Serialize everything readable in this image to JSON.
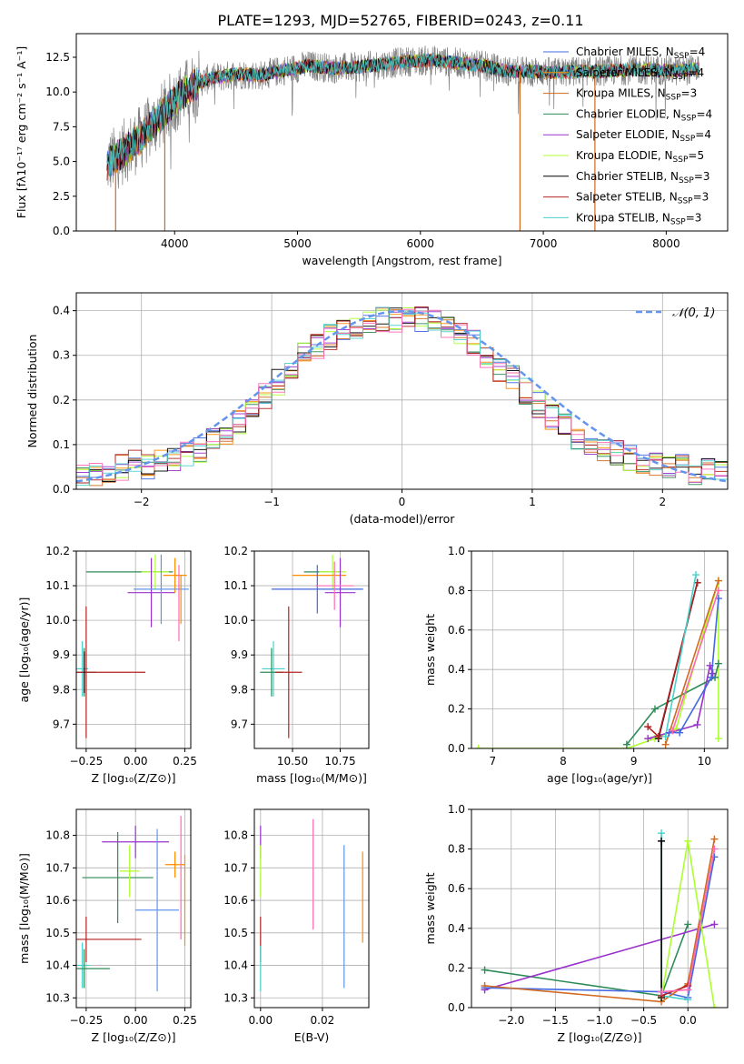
{
  "figure": {
    "title": "PLATE=1293, MJD=52765, FIBERID=0243, z=0.11"
  },
  "chart_data": [
    {
      "id": "spectrum",
      "type": "line",
      "title": "PLATE=1293, MJD=52765, FIBERID=0243, z=0.11",
      "xlabel": "wavelength [Angstrom, rest frame]",
      "ylabel": "Flux [fλ10⁻¹⁷ erg cm⁻² s⁻¹ A⁻¹]",
      "xlim": [
        3200,
        8500
      ],
      "ylim": [
        0,
        14.2
      ],
      "xticks": [
        4000,
        5000,
        6000,
        7000,
        8000
      ],
      "xtick_labels": [
        "4000",
        "5000",
        "6000",
        "7000",
        "8000"
      ],
      "yticks": [
        0,
        2.5,
        5,
        7.5,
        10,
        12.5
      ],
      "ytick_labels": [
        "0.0",
        "2.5",
        "5.0",
        "7.5",
        "10.0",
        "12.5"
      ],
      "grid": false,
      "legend_position": "right",
      "continuum": {
        "x": [
          3450,
          3600,
          3700,
          3800,
          3900,
          4000,
          4100,
          4200,
          4300,
          4400,
          4500,
          4700,
          4900,
          5100,
          5300,
          5500,
          5700,
          5900,
          6100,
          6300,
          6500,
          6700,
          6900,
          7100,
          7300,
          7500,
          7700,
          7900,
          8100,
          8270
        ],
        "y": [
          4.8,
          5.8,
          6.5,
          7.4,
          8.4,
          9.4,
          10.1,
          10.7,
          11.0,
          11.1,
          11.3,
          11.2,
          11.6,
          11.9,
          11.7,
          11.8,
          12.0,
          12.2,
          12.3,
          12.1,
          11.9,
          11.5,
          11.5,
          11.4,
          11.5,
          11.5,
          11.6,
          11.6,
          11.5,
          11.7
        ]
      },
      "series": [
        {
          "name": "Chabrier MILES, N$_{SSP}$=4",
          "color": "#4169e1",
          "label_main": "Chabrier MILES, N",
          "label_sub": "SSP",
          "label_tail": "=4"
        },
        {
          "name": "Salpeter MILES, N$_{SSP}$=4",
          "color": "#ff8c00",
          "label_main": "Salpeter MILES, N",
          "label_sub": "SSP",
          "label_tail": "=4"
        },
        {
          "name": "Kroupa MILES, N$_{SSP}$=3",
          "color": "#d2691e",
          "label_main": "Kroupa MILES, N",
          "label_sub": "SSP",
          "label_tail": "=3"
        },
        {
          "name": "Chabrier ELODIE, N$_{SSP}$=4",
          "color": "#2e8b57",
          "label_main": "Chabrier ELODIE, N",
          "label_sub": "SSP",
          "label_tail": "=4"
        },
        {
          "name": "Salpeter ELODIE, N$_{SSP}$=4",
          "color": "#9932cc",
          "label_main": "Salpeter ELODIE, N",
          "label_sub": "SSP",
          "label_tail": "=4"
        },
        {
          "name": "Kroupa ELODIE, N$_{SSP}$=5",
          "color": "#adff2f",
          "label_main": "Kroupa ELODIE, N",
          "label_sub": "SSP",
          "label_tail": "=5"
        },
        {
          "name": "Chabrier STELIB, N$_{SSP}$=3",
          "color": "#000000",
          "label_main": "Chabrier STELIB, N",
          "label_sub": "SSP",
          "label_tail": "=3"
        },
        {
          "name": "Salpeter STELIB, N$_{SSP}$=3",
          "color": "#b22222",
          "label_main": "Salpeter STELIB, N",
          "label_sub": "SSP",
          "label_tail": "=3"
        },
        {
          "name": "Kroupa STELIB, N$_{SSP}$=3",
          "color": "#48d1cc",
          "label_main": "Kroupa STELIB, N",
          "label_sub": "SSP",
          "label_tail": "=3"
        }
      ],
      "spikes_to_zero": [
        3520,
        3920,
        6810,
        7420
      ]
    },
    {
      "id": "residuals",
      "type": "histogram",
      "xlabel": "(data-model)/error",
      "ylabel": "Normed distribution",
      "xlim": [
        -2.5,
        2.5
      ],
      "ylim": [
        0,
        0.44
      ],
      "xticks": [
        -2,
        -1,
        0,
        1,
        2
      ],
      "xtick_labels": [
        "−2",
        "−1",
        "0",
        "1",
        "2"
      ],
      "yticks": [
        0,
        0.1,
        0.2,
        0.3,
        0.4
      ],
      "ytick_labels": [
        "0.0",
        "0.1",
        "0.2",
        "0.3",
        "0.4"
      ],
      "grid": true,
      "bin_width": 0.1,
      "bin_start": -2.5,
      "reference_curve": {
        "name": "N(0,1)",
        "legend_label": "𝒩(0, 1)",
        "color": "#6495ed",
        "style": "dashed",
        "mu": 0,
        "sigma": 1
      },
      "histogram_envelope": [
        0.03,
        0.03,
        0.04,
        0.05,
        0.06,
        0.05,
        0.06,
        0.07,
        0.08,
        0.09,
        0.11,
        0.13,
        0.15,
        0.18,
        0.21,
        0.24,
        0.27,
        0.3,
        0.32,
        0.34,
        0.35,
        0.36,
        0.37,
        0.38,
        0.38,
        0.39,
        0.38,
        0.38,
        0.37,
        0.35,
        0.33,
        0.3,
        0.27,
        0.25,
        0.22,
        0.19,
        0.16,
        0.14,
        0.12,
        0.1,
        0.09,
        0.08,
        0.07,
        0.06,
        0.06,
        0.05,
        0.05,
        0.04,
        0.04,
        0.04
      ]
    },
    {
      "id": "age-vs-z",
      "type": "errorbar",
      "xlabel": "Z [log₁₀(Z/Z⊙)]",
      "ylabel": "age  [log₁₀(age/yr)]",
      "xlim": [
        -0.3,
        0.28
      ],
      "ylim": [
        9.63,
        10.2
      ],
      "xticks": [
        -0.25,
        0.0,
        0.25
      ],
      "xtick_labels": [
        "−0.25",
        "0.00",
        "0.25"
      ],
      "yticks": [
        9.7,
        9.8,
        9.9,
        10.0,
        10.1,
        10.2
      ],
      "ytick_labels": [
        "9.7",
        "9.8",
        "9.9",
        "10.0",
        "10.1",
        "10.2"
      ],
      "grid": true,
      "points": [
        {
          "x": -0.27,
          "y": 9.86,
          "xerr": 0.03,
          "yerr": 0.08,
          "color": "#48d1cc"
        },
        {
          "x": -0.26,
          "y": 9.85,
          "xerr": 0.06,
          "yerr": 0.07,
          "color": "#2e8b57"
        },
        {
          "x": -0.25,
          "y": 9.85,
          "xerr": 0.3,
          "yerr": 0.19,
          "color": "#b22222"
        },
        {
          "x": -0.26,
          "y": 9.85,
          "xerr": 0.0,
          "yerr": 0.06,
          "color": "#000000"
        },
        {
          "x": -0.03,
          "y": 10.14,
          "xerr": 0.22,
          "yerr": 0.0,
          "color": "#2e8b57"
        },
        {
          "x": 0.1,
          "y": 10.14,
          "xerr": 0.07,
          "yerr": 0.05,
          "color": "#adff2f"
        },
        {
          "x": 0.08,
          "y": 10.08,
          "xerr": 0.12,
          "yerr": 0.1,
          "color": "#9932cc"
        },
        {
          "x": 0.2,
          "y": 10.13,
          "xerr": 0.06,
          "yerr": 0.05,
          "color": "#ff8c00"
        },
        {
          "x": 0.13,
          "y": 10.09,
          "xerr": 0.14,
          "yerr": 0.1,
          "color": "#6495ed"
        },
        {
          "x": 0.22,
          "y": 10.05,
          "xerr": 0.0,
          "yerr": 0.11,
          "color": "#ff69b4"
        },
        {
          "x": 0.23,
          "y": 10.06,
          "xerr": 0.0,
          "yerr": 0.07,
          "color": "#ff8c00"
        }
      ]
    },
    {
      "id": "age-vs-mass",
      "type": "errorbar",
      "xlabel": "mass [log₁₀(M/M⊙)]",
      "ylabel": "",
      "xlim": [
        10.3,
        10.9
      ],
      "ylim": [
        9.63,
        10.2
      ],
      "xticks": [
        10.5,
        10.75
      ],
      "xtick_labels": [
        "10.50",
        "10.75"
      ],
      "yticks": [
        9.7,
        9.8,
        9.9,
        10.0,
        10.1,
        10.2
      ],
      "ytick_labels": [
        "9.7",
        "9.8",
        "9.9",
        "10.0",
        "10.1",
        "10.2"
      ],
      "grid": true,
      "points": [
        {
          "x": 10.4,
          "y": 9.86,
          "xerr": 0.06,
          "yerr": 0.08,
          "color": "#48d1cc"
        },
        {
          "x": 10.39,
          "y": 9.85,
          "xerr": 0.06,
          "yerr": 0.07,
          "color": "#2e8b57"
        },
        {
          "x": 10.48,
          "y": 9.85,
          "xerr": 0.07,
          "yerr": 0.19,
          "color": "#b22222"
        },
        {
          "x": 10.66,
          "y": 10.14,
          "xerr": 0.1,
          "yerr": 0.0,
          "color": "#2e8b57"
        },
        {
          "x": 10.71,
          "y": 10.14,
          "xerr": 0.07,
          "yerr": 0.05,
          "color": "#adff2f"
        },
        {
          "x": 10.64,
          "y": 10.13,
          "xerr": 0.14,
          "yerr": 0.0,
          "color": "#ff8c00"
        },
        {
          "x": 10.63,
          "y": 10.09,
          "xerr": 0.24,
          "yerr": 0.07,
          "color": "#4169e1"
        },
        {
          "x": 10.75,
          "y": 10.08,
          "xerr": 0.08,
          "yerr": 0.1,
          "color": "#9932cc"
        },
        {
          "x": 10.72,
          "y": 10.1,
          "xerr": 0.1,
          "yerr": 0.07,
          "color": "#ff69b4"
        }
      ]
    },
    {
      "id": "weight-vs-age",
      "type": "line",
      "xlabel": "age  [log₁₀(age/yr)]",
      "ylabel": "mass weight",
      "xlim": [
        6.7,
        10.33
      ],
      "ylim": [
        0,
        1
      ],
      "xticks": [
        7,
        8,
        9,
        10
      ],
      "xtick_labels": [
        "7",
        "8",
        "9",
        "10"
      ],
      "yticks": [
        0,
        0.2,
        0.4,
        0.6,
        0.8,
        1.0
      ],
      "ytick_labels": [
        "0.0",
        "0.2",
        "0.4",
        "0.6",
        "0.8",
        "1.0"
      ],
      "grid": true,
      "series": [
        {
          "name": "Kroupa ELODIE",
          "color": "#adff2f",
          "x": [
            6.8,
            8.9,
            9.3,
            9.6,
            10.2,
            10.2
          ],
          "y": [
            0.0,
            0.0,
            0.05,
            0.1,
            0.85,
            0.05
          ]
        },
        {
          "name": "Chabrier ELODIE",
          "color": "#2e8b57",
          "x": [
            8.9,
            9.3,
            10.15,
            10.2
          ],
          "y": [
            0.02,
            0.2,
            0.36,
            0.43
          ]
        },
        {
          "name": "Salpeter ELODIE",
          "color": "#9932cc",
          "x": [
            9.2,
            9.9,
            10.08,
            10.12
          ],
          "y": [
            0.05,
            0.12,
            0.42,
            0.38
          ]
        },
        {
          "name": "Salpeter MILES",
          "color": "#d2691e",
          "x": [
            9.45,
            10.2
          ],
          "y": [
            0.02,
            0.85
          ]
        },
        {
          "name": "Chabrier STELIB",
          "color": "#000000",
          "x": [
            9.35,
            9.9
          ],
          "y": [
            0.05,
            0.84
          ]
        },
        {
          "name": "Salpeter STELIB",
          "color": "#b22222",
          "x": [
            9.2,
            9.35,
            9.9
          ],
          "y": [
            0.11,
            0.06,
            0.84
          ]
        },
        {
          "name": "Kroupa STELIB",
          "color": "#48d1cc",
          "x": [
            9.45,
            9.88
          ],
          "y": [
            0.06,
            0.88
          ]
        },
        {
          "name": "Chabrier MILES",
          "color": "#4169e1",
          "x": [
            9.5,
            9.65,
            10.1,
            10.2
          ],
          "y": [
            0.08,
            0.08,
            0.36,
            0.76
          ]
        },
        {
          "name": "Kroupa MILES",
          "color": "#ff69b4",
          "x": [
            9.55,
            10.2
          ],
          "y": [
            0.09,
            0.8
          ]
        }
      ]
    },
    {
      "id": "mass-vs-z",
      "type": "errorbar",
      "xlabel": "Z [log₁₀(Z/Z⊙)]",
      "ylabel": "mass [log₁₀(M/M⊙)]",
      "xlim": [
        -0.3,
        0.28
      ],
      "ylim": [
        10.27,
        10.88
      ],
      "xticks": [
        -0.25,
        0.0,
        0.25
      ],
      "xtick_labels": [
        "−0.25",
        "0.00",
        "0.25"
      ],
      "yticks": [
        10.3,
        10.4,
        10.5,
        10.6,
        10.7,
        10.8
      ],
      "ytick_labels": [
        "10.3",
        "10.4",
        "10.5",
        "10.6",
        "10.7",
        "10.8"
      ],
      "grid": true,
      "points": [
        {
          "x": -0.27,
          "y": 10.4,
          "xerr": 0.04,
          "yerr": 0.07,
          "color": "#48d1cc"
        },
        {
          "x": -0.26,
          "y": 10.39,
          "xerr": 0.13,
          "yerr": 0.06,
          "color": "#2e8b57"
        },
        {
          "x": -0.25,
          "y": 10.48,
          "xerr": 0.28,
          "yerr": 0.07,
          "color": "#b22222"
        },
        {
          "x": -0.09,
          "y": 10.67,
          "xerr": 0.18,
          "yerr": 0.14,
          "color": "#2e8b57"
        },
        {
          "x": -0.03,
          "y": 10.69,
          "xerr": 0.05,
          "yerr": 0.08,
          "color": "#adff2f"
        },
        {
          "x": 0.0,
          "y": 10.78,
          "xerr": 0.17,
          "yerr": 0.05,
          "color": "#9932cc"
        },
        {
          "x": 0.2,
          "y": 10.71,
          "xerr": 0.05,
          "yerr": 0.04,
          "color": "#ff8c00"
        },
        {
          "x": 0.11,
          "y": 10.57,
          "xerr": 0.11,
          "yerr": 0.25,
          "color": "#6495ed"
        },
        {
          "x": 0.23,
          "y": 10.67,
          "xerr": 0.0,
          "yerr": 0.19,
          "color": "#ff69b4"
        },
        {
          "x": 0.25,
          "y": 10.6,
          "xerr": 0.0,
          "yerr": 0.14,
          "color": "#ff8c00"
        }
      ]
    },
    {
      "id": "mass-vs-ebv",
      "type": "errorbar",
      "xlabel": "E(B-V)",
      "ylabel": "",
      "xlim": [
        -0.002,
        0.035
      ],
      "ylim": [
        10.27,
        10.88
      ],
      "xticks": [
        0.0,
        0.02
      ],
      "xtick_labels": [
        "0.00",
        "0.02"
      ],
      "yticks": [
        10.3,
        10.4,
        10.5,
        10.6,
        10.7,
        10.8
      ],
      "ytick_labels": [
        "10.3",
        "10.4",
        "10.5",
        "10.6",
        "10.7",
        "10.8"
      ],
      "grid": true,
      "points": [
        {
          "x": 0.0,
          "y": 10.78,
          "xerr": 0,
          "yerr": 0.05,
          "color": "#9932cc"
        },
        {
          "x": 0.0,
          "y": 10.69,
          "xerr": 0,
          "yerr": 0.08,
          "color": "#adff2f"
        },
        {
          "x": 0.0,
          "y": 10.48,
          "xerr": 0,
          "yerr": 0.07,
          "color": "#b22222"
        },
        {
          "x": 0.0,
          "y": 10.39,
          "xerr": 0,
          "yerr": 0.07,
          "color": "#48d1cc"
        },
        {
          "x": 0.017,
          "y": 10.68,
          "xerr": 0,
          "yerr": 0.17,
          "color": "#ff69b4"
        },
        {
          "x": 0.027,
          "y": 10.55,
          "xerr": 0,
          "yerr": 0.22,
          "color": "#6495ed"
        },
        {
          "x": 0.033,
          "y": 10.61,
          "xerr": 0,
          "yerr": 0.14,
          "color": "#ff8c00"
        }
      ]
    },
    {
      "id": "weight-vs-z",
      "type": "line",
      "xlabel": "Z [log₁₀(Z/Z⊙)]",
      "ylabel": "mass weight",
      "xlim": [
        -2.45,
        0.45
      ],
      "ylim": [
        0,
        1
      ],
      "xticks": [
        -2.0,
        -1.5,
        -1.0,
        -0.5,
        0.0
      ],
      "xtick_labels": [
        "−2.0",
        "−1.5",
        "−1.0",
        "−0.5",
        "0.0"
      ],
      "yticks": [
        0,
        0.2,
        0.4,
        0.6,
        0.8,
        1.0
      ],
      "ytick_labels": [
        "0.0",
        "0.2",
        "0.4",
        "0.6",
        "0.8",
        "1.0"
      ],
      "grid": true,
      "series": [
        {
          "name": "Chabrier ELODIE",
          "color": "#2e8b57",
          "x": [
            -2.3,
            -0.3,
            0.0
          ],
          "y": [
            0.19,
            0.06,
            0.42
          ]
        },
        {
          "name": "Salpeter ELODIE",
          "color": "#9932cc",
          "x": [
            -2.3,
            0.3
          ],
          "y": [
            0.09,
            0.42
          ]
        },
        {
          "name": "Chabrier MILES",
          "color": "#4169e1",
          "x": [
            -2.3,
            -0.3,
            0.0,
            0.3
          ],
          "y": [
            0.1,
            0.08,
            0.05,
            0.76
          ]
        },
        {
          "name": "Salpeter MILES",
          "color": "#d2691e",
          "x": [
            -2.3,
            -0.3,
            0.0,
            0.3
          ],
          "y": [
            0.11,
            0.03,
            0.12,
            0.85
          ]
        },
        {
          "name": "Kroupa ELODIE",
          "color": "#adff2f",
          "x": [
            -0.3,
            0.0,
            0.3
          ],
          "y": [
            0.05,
            0.84,
            0.0
          ]
        },
        {
          "name": "Kroupa STELIB",
          "color": "#48d1cc",
          "x": [
            -0.3,
            -0.3,
            0.0
          ],
          "y": [
            0.88,
            0.06,
            0.04
          ]
        },
        {
          "name": "Chabrier STELIB",
          "color": "#000000",
          "x": [
            -0.3,
            -0.3
          ],
          "y": [
            0.84,
            0.05
          ]
        },
        {
          "name": "Salpeter STELIB",
          "color": "#b22222",
          "x": [
            -0.3,
            0.0
          ],
          "y": [
            0.06,
            0.11
          ]
        },
        {
          "name": "Kroupa MILES",
          "color": "#ff69b4",
          "x": [
            -0.3,
            0.0,
            0.3
          ],
          "y": [
            0.08,
            0.09,
            0.8
          ]
        }
      ]
    }
  ]
}
